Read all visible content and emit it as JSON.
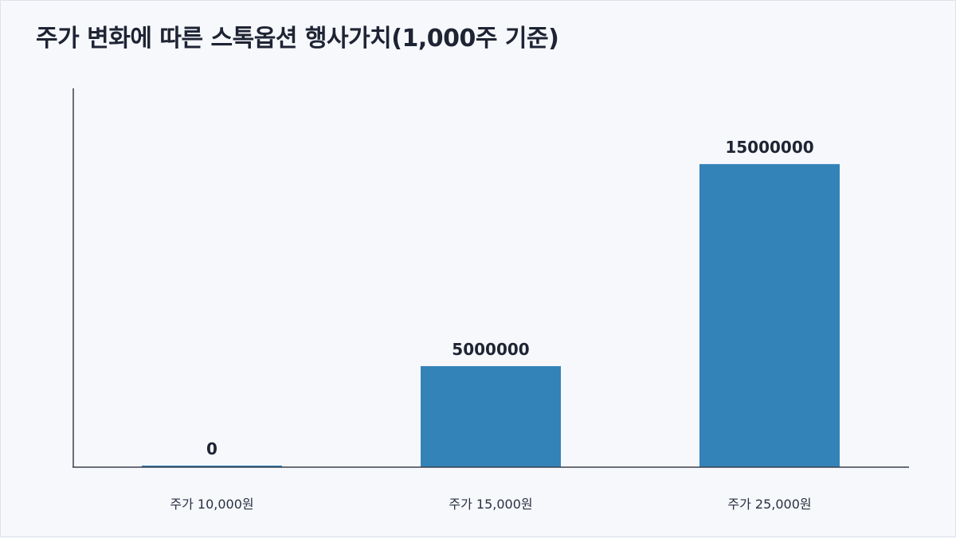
{
  "colors": {
    "background": "#f6f8fc",
    "bar": "#3382b8",
    "text": "#1e2433",
    "axis": "#3a3f4b"
  },
  "chart_data": {
    "type": "bar",
    "title": "주가 변화에 따른 스톡옵션 행사가치(1,000주 기준)",
    "categories": [
      "주가 10,000원",
      "주가 15,000원",
      "주가 25,000원"
    ],
    "values": [
      0,
      5000000,
      15000000
    ],
    "data_labels": [
      "0",
      "5000000",
      "15000000"
    ],
    "xlabel": "",
    "ylabel": "",
    "ylim": [
      0,
      18750000
    ],
    "grid": false,
    "legend": "none"
  }
}
